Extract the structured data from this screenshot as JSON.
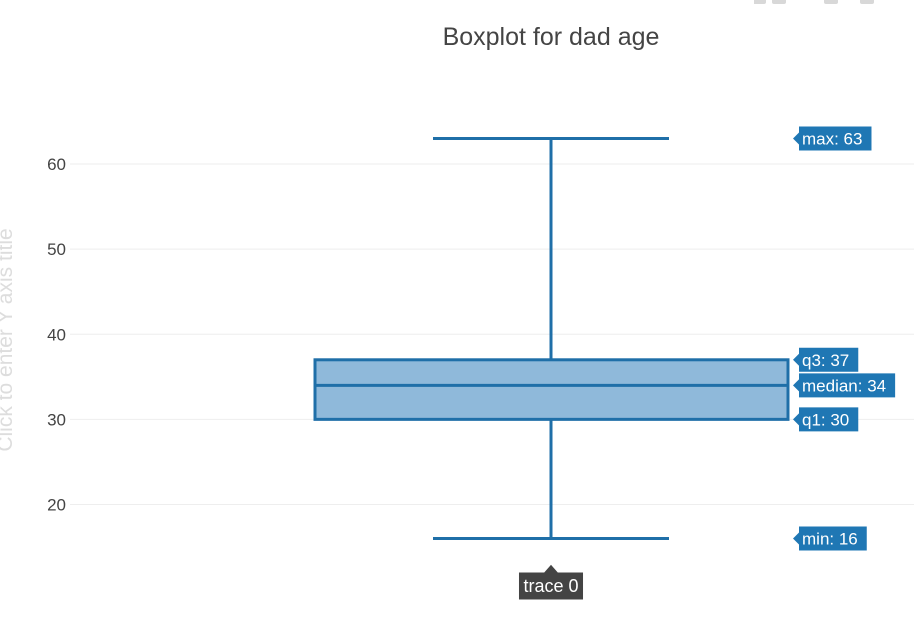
{
  "chart_data": {
    "type": "box",
    "title": "Boxplot for dad age",
    "ylabel_placeholder": "Click to enter Y axis title",
    "ylim": [
      12.3,
      68.7
    ],
    "yticks": [
      20,
      30,
      40,
      50,
      60
    ],
    "grid": true,
    "series": [
      {
        "name": "trace 0",
        "min": 16,
        "q1": 30,
        "median": 34,
        "q3": 37,
        "max": 63
      }
    ],
    "hover_labels": [
      {
        "key": "max",
        "text": "max: 63"
      },
      {
        "key": "q3",
        "text": "q3: 37"
      },
      {
        "key": "median",
        "text": "median: 34"
      },
      {
        "key": "q1",
        "text": "q1: 30"
      },
      {
        "key": "min",
        "text": "min: 16"
      }
    ],
    "colors": {
      "box_fill": "#8fb9da",
      "box_line": "#1f6fa8",
      "label_bg": "#1f77b4",
      "label_text": "#ffffff",
      "trace_label_bg": "#444444",
      "grid": "#eeeeee",
      "tick_text": "#444444",
      "title_text": "#444444",
      "placeholder_text": "#dddddd"
    }
  }
}
